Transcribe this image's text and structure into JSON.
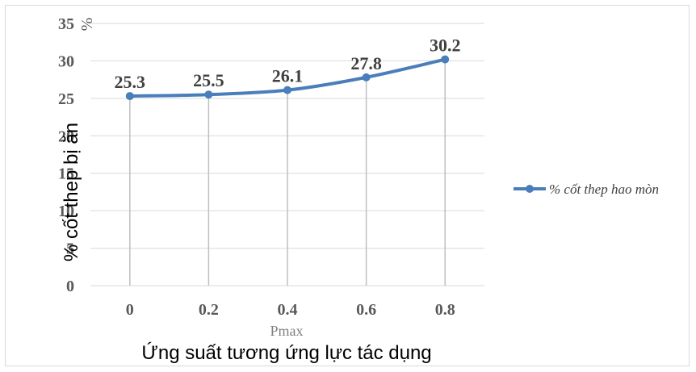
{
  "chart_data": {
    "type": "line",
    "x": [
      "0",
      "0.2",
      "0.4",
      "0.6",
      "0.8"
    ],
    "series": [
      {
        "name": "% cốt thep hao mòn",
        "values": [
          25.3,
          25.5,
          26.1,
          27.8,
          30.2
        ],
        "color": "#4a7ebb"
      }
    ],
    "data_labels": [
      "25.3",
      "25.5",
      "26.1",
      "27.8",
      "30.2"
    ],
    "y_ticks": [
      "0",
      "5",
      "10",
      "15",
      "20",
      "25",
      "30",
      "35"
    ],
    "ylim": [
      0,
      35
    ],
    "y_unit": "%",
    "ylabel": "% cốt thep bị ăn",
    "xlabel_small": "Pmax",
    "xlabel": "Ứng suất tương ứng lực tác dụng",
    "grid": true,
    "legend_position": "right",
    "gridline_color": "#d9d9d9"
  }
}
